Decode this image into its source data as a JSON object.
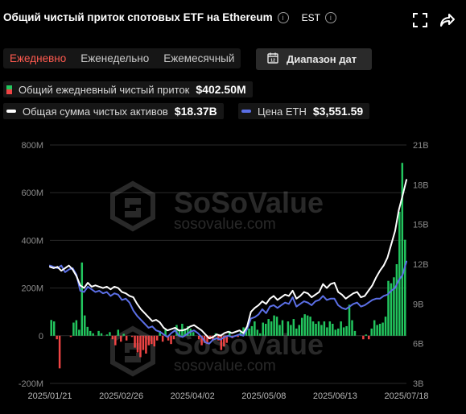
{
  "header": {
    "title": "Общий чистый приток спотовых ETF на Ethereum",
    "timezone": "EST"
  },
  "tabs": [
    {
      "label": "Ежедневно",
      "active": true
    },
    {
      "label": "Еженедельно",
      "active": false
    },
    {
      "label": "Ежемесячный",
      "active": false
    }
  ],
  "date_range_label": "Диапазон дат",
  "legend": {
    "inflow_label": "Общий ежедневный чистый приток",
    "inflow_value": "$402.50M",
    "assets_label": "Общая сумма чистых активов",
    "assets_value": "$18.37B",
    "eth_label": "Цена ETH",
    "eth_value": "$3,551.59"
  },
  "watermark": {
    "brand": "SoSoValue",
    "url": "sosovalue.com"
  },
  "colors": {
    "positive": "#22c55e",
    "negative": "#ef4444",
    "assets_line": "#ffffff",
    "eth_line": "#5b6fe6",
    "accent": "#ff5a4f"
  },
  "chart_data": {
    "type": "bar",
    "series": [
      {
        "name": "Общий ежедневный чистый приток",
        "type": "bar",
        "axis": "left",
        "values": [
          66,
          60,
          -15,
          -137,
          0,
          0,
          0,
          -5,
          55,
          65,
          25,
          307,
          85,
          37,
          20,
          10,
          0,
          20,
          10,
          0,
          5,
          15,
          -15,
          -40,
          25,
          -25,
          8,
          -20,
          0,
          -5,
          -50,
          -70,
          -90,
          -60,
          -75,
          -40,
          -35,
          -45,
          -20,
          20,
          -25,
          25,
          -20,
          -35,
          -15,
          45,
          20,
          50,
          30,
          40,
          30,
          15,
          0,
          -15,
          -40,
          -30,
          -35,
          -15,
          -20,
          10,
          -20,
          -60,
          -45,
          -30,
          20,
          -10,
          0,
          -5,
          15,
          35,
          25,
          30,
          40,
          60,
          25,
          10,
          55,
          50,
          70,
          60,
          85,
          80,
          45,
          65,
          0,
          60,
          45,
          70,
          30,
          45,
          75,
          90,
          85,
          80,
          60,
          50,
          60,
          45,
          60,
          35,
          60,
          50,
          25,
          30,
          60,
          35,
          40,
          130,
          65,
          20,
          0,
          0,
          -15,
          5,
          -15,
          30,
          65,
          45,
          50,
          55,
          80,
          230,
          220,
          245,
          300,
          520,
          725,
          402.5
        ]
      },
      {
        "name": "Общая сумма чистых активов",
        "type": "line",
        "axis": "right",
        "unit": "B",
        "values": [
          11.8,
          11.7,
          11.8,
          11.5,
          11.7,
          11.9,
          11.6,
          11.1,
          10.4,
          10.2,
          10.6,
          10.3,
          10.4,
          10.3,
          10.2,
          10.3,
          10.1,
          10.3,
          10.2,
          9.9,
          9.8,
          9.6,
          9.5,
          9.0,
          8.6,
          8.3,
          8.0,
          7.7,
          7.8,
          7.6,
          7.2,
          7.0,
          7.1,
          7.2,
          7.0,
          7.0,
          7.1,
          7.3,
          7.4,
          7.2,
          7.0,
          6.7,
          6.4,
          6.5,
          6.7,
          6.6,
          6.8,
          6.9,
          6.8,
          6.9,
          7.0,
          6.8,
          7.3,
          8.4,
          8.7,
          8.9,
          9.2,
          9.0,
          9.4,
          9.6,
          9.3,
          9.5,
          9.7,
          9.6,
          10.0,
          9.4,
          9.6,
          9.9,
          9.8,
          9.5,
          9.7,
          9.9,
          10.5,
          10.2,
          10.5,
          10.6,
          9.9,
          9.7,
          9.4,
          9.6,
          9.8,
          9.9,
          9.5,
          9.6,
          10.0,
          10.4,
          11.0,
          11.5,
          11.9,
          12.5,
          13.5,
          14.5,
          16.1,
          17.2,
          18.37
        ]
      },
      {
        "name": "Цена ETH",
        "type": "line",
        "axis": "right",
        "unit": "B-scale",
        "values": [
          11.9,
          11.8,
          11.7,
          11.9,
          11.4,
          11.6,
          11.7,
          11.2,
          10.0,
          9.9,
          10.3,
          10.1,
          9.9,
          10.0,
          9.8,
          9.9,
          9.6,
          9.8,
          9.7,
          9.3,
          9.4,
          9.1,
          8.5,
          8.1,
          7.8,
          7.5,
          7.2,
          7.3,
          7.0,
          6.9,
          6.7,
          6.5,
          6.8,
          7.0,
          6.6,
          6.5,
          6.7,
          6.9,
          7.0,
          6.8,
          6.5,
          6.1,
          6.0,
          6.3,
          6.4,
          6.3,
          6.5,
          6.6,
          6.5,
          6.6,
          6.7,
          6.6,
          7.1,
          7.9,
          8.0,
          8.2,
          8.6,
          8.3,
          8.8,
          8.9,
          8.7,
          8.9,
          9.1,
          9.0,
          9.5,
          8.8,
          9.0,
          9.2,
          9.1,
          8.9,
          9.2,
          9.3,
          9.6,
          9.3,
          9.4,
          9.4,
          8.9,
          8.7,
          8.6,
          8.8,
          9.0,
          9.1,
          8.8,
          8.9,
          9.1,
          9.3,
          9.4,
          9.4,
          9.6,
          9.7,
          10.0,
          10.2,
          10.8,
          11.2,
          12.2
        ]
      }
    ],
    "x_ticks": [
      "2025/01/21",
      "2025/02/26",
      "2025/04/02",
      "2025/05/08",
      "2025/06/13",
      "2025/07/18"
    ],
    "y_left": {
      "ticks": [
        "800M",
        "600M",
        "400M",
        "200M",
        "0",
        "-200M"
      ],
      "range": [
        -200,
        800
      ]
    },
    "y_right": {
      "ticks": [
        "21B",
        "18B",
        "15B",
        "12B",
        "9B",
        "6B",
        "3B"
      ],
      "range": [
        3,
        21
      ]
    },
    "grid": true,
    "legend_position": "top-left"
  }
}
